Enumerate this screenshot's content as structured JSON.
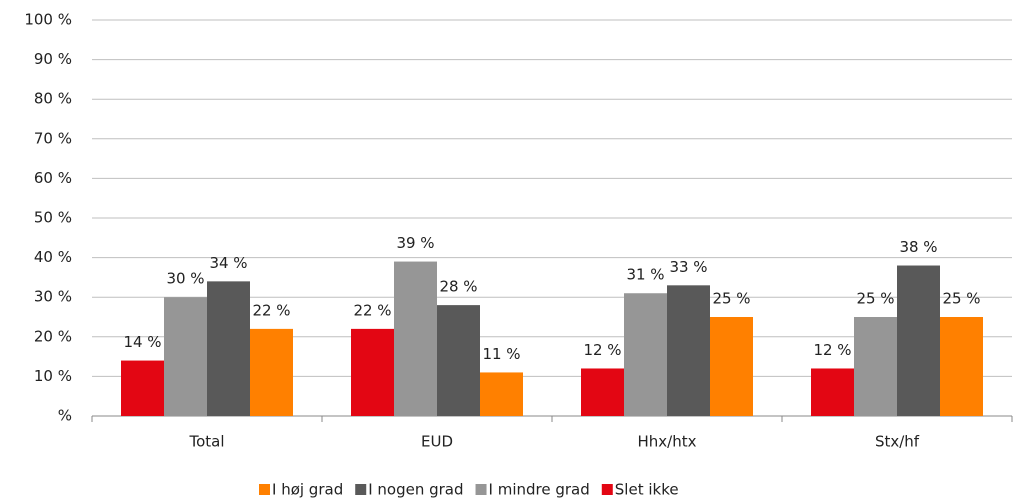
{
  "chart_data": {
    "type": "bar",
    "categories": [
      "Total",
      "EUD",
      "Hhx/htx",
      "Stx/hf"
    ],
    "series": [
      {
        "name": "I høj grad",
        "color": "#ff8000",
        "values": [
          22,
          11,
          25,
          25
        ],
        "value_labels": [
          "22 %",
          "11 %",
          "25 %",
          "25 %"
        ]
      },
      {
        "name": "I nogen grad",
        "color": "#595959",
        "values": [
          34,
          28,
          33,
          38
        ],
        "value_labels": [
          "34 %",
          "28 %",
          "33 %",
          "38 %"
        ]
      },
      {
        "name": "I mindre grad",
        "color": "#969696",
        "values": [
          30,
          39,
          31,
          25
        ],
        "value_labels": [
          "30 %",
          "39 %",
          "31 %",
          "25 %"
        ]
      },
      {
        "name": "Slet ikke",
        "color": "#e30613",
        "values": [
          14,
          22,
          12,
          12
        ],
        "value_labels": [
          "14 %",
          "22 %",
          "12 %",
          "12 %"
        ]
      }
    ],
    "ylim": [
      0,
      100
    ],
    "yticks": [
      {
        "value": 0,
        "label": "%"
      },
      {
        "value": 10,
        "label": "10 %"
      },
      {
        "value": 20,
        "label": "20 %"
      },
      {
        "value": 30,
        "label": "30 %"
      },
      {
        "value": 40,
        "label": "40 %"
      },
      {
        "value": 50,
        "label": "50 %"
      },
      {
        "value": 60,
        "label": "60 %"
      },
      {
        "value": 70,
        "label": "70 %"
      },
      {
        "value": 80,
        "label": "80 %"
      },
      {
        "value": 90,
        "label": "90 %"
      },
      {
        "value": 100,
        "label": "100 %"
      }
    ],
    "grid": true,
    "legend": "bottom"
  }
}
